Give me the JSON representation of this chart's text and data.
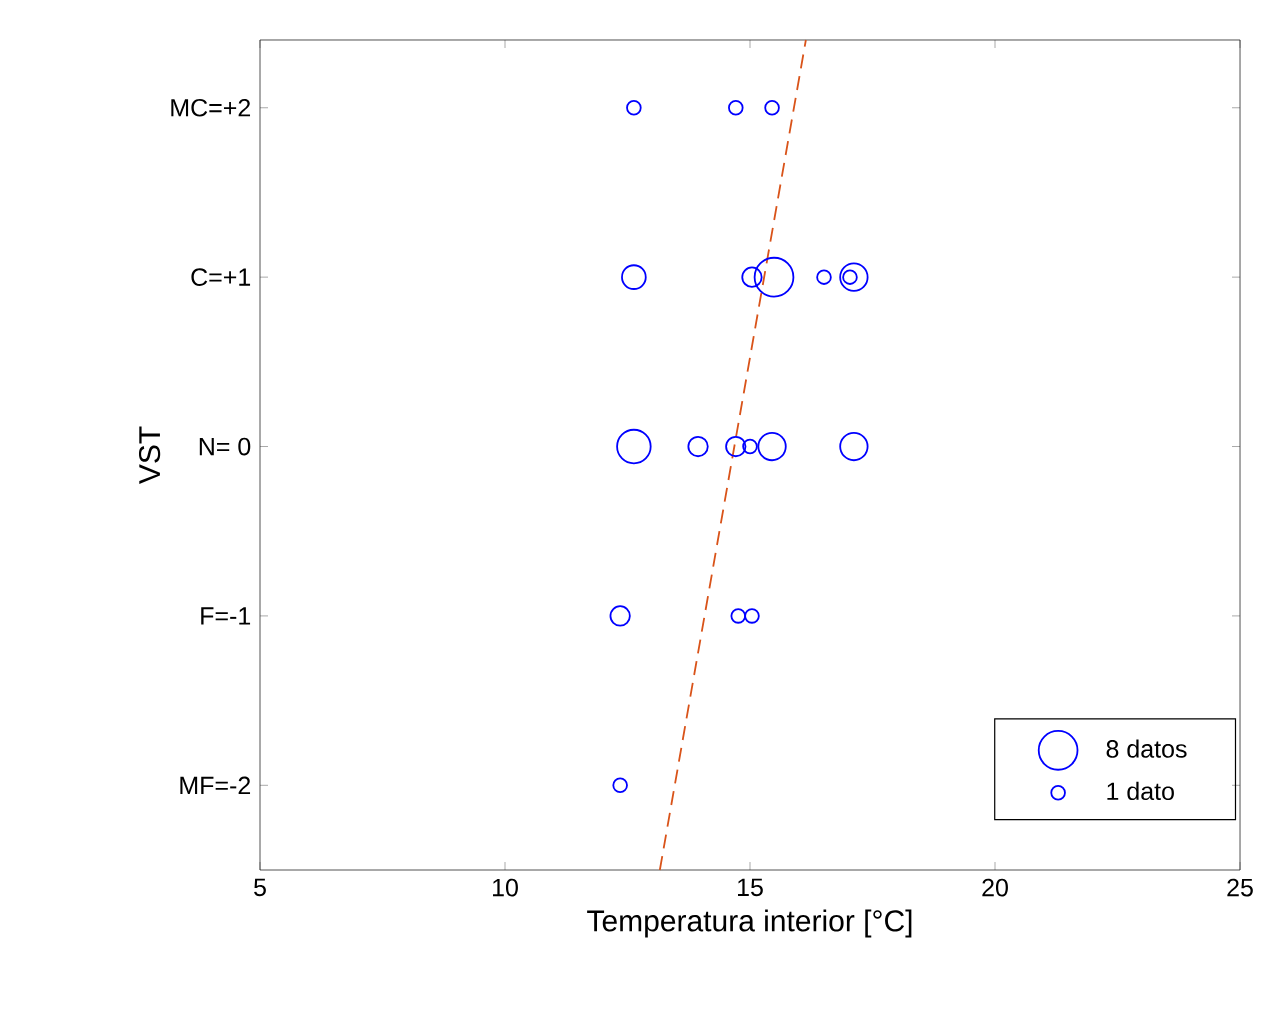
{
  "chart_data": {
    "type": "bubble",
    "xlabel": "Temperatura interior [°C]",
    "ylabel": "VST",
    "xlim": [
      5,
      25
    ],
    "xticks": [
      5,
      10,
      15,
      20,
      25
    ],
    "ylim": [
      -2.5,
      2.4
    ],
    "yticks": [
      {
        "value": -2,
        "label": "MF=-2"
      },
      {
        "value": -1,
        "label": "F=-1"
      },
      {
        "value": 0,
        "label": "N= 0"
      },
      {
        "value": 1,
        "label": "C=+1"
      },
      {
        "value": 2,
        "label": "MC=+2"
      }
    ],
    "grid": false,
    "size_legend": [
      {
        "value": 8,
        "label": "8 datos"
      },
      {
        "value": 1,
        "label": "1 dato"
      }
    ],
    "series": [
      {
        "color": "#0000ff",
        "x": [
          12.63,
          14.71,
          15.45,
          12.63,
          15.04,
          15.49,
          16.51,
          17.12,
          17.04,
          12.63,
          13.94,
          14.71,
          15.0,
          15.45,
          17.12,
          12.35,
          14.76,
          15.04,
          12.35
        ],
        "values": [
          2,
          2,
          2,
          1,
          1,
          1,
          1,
          1,
          1,
          0,
          0,
          0,
          0,
          0,
          0,
          -1,
          -1,
          -1,
          -2
        ],
        "sizes": [
          1,
          1,
          1,
          3,
          2,
          8,
          1,
          4,
          1,
          6,
          2,
          2,
          1,
          4,
          4,
          2,
          1,
          1,
          1
        ]
      },
      {
        "type": "line",
        "color": "#d95319",
        "line_style": "dashed",
        "marker": "none",
        "x": [
          13.16,
          16.14
        ],
        "values": [
          -2.5,
          2.4
        ]
      }
    ]
  }
}
